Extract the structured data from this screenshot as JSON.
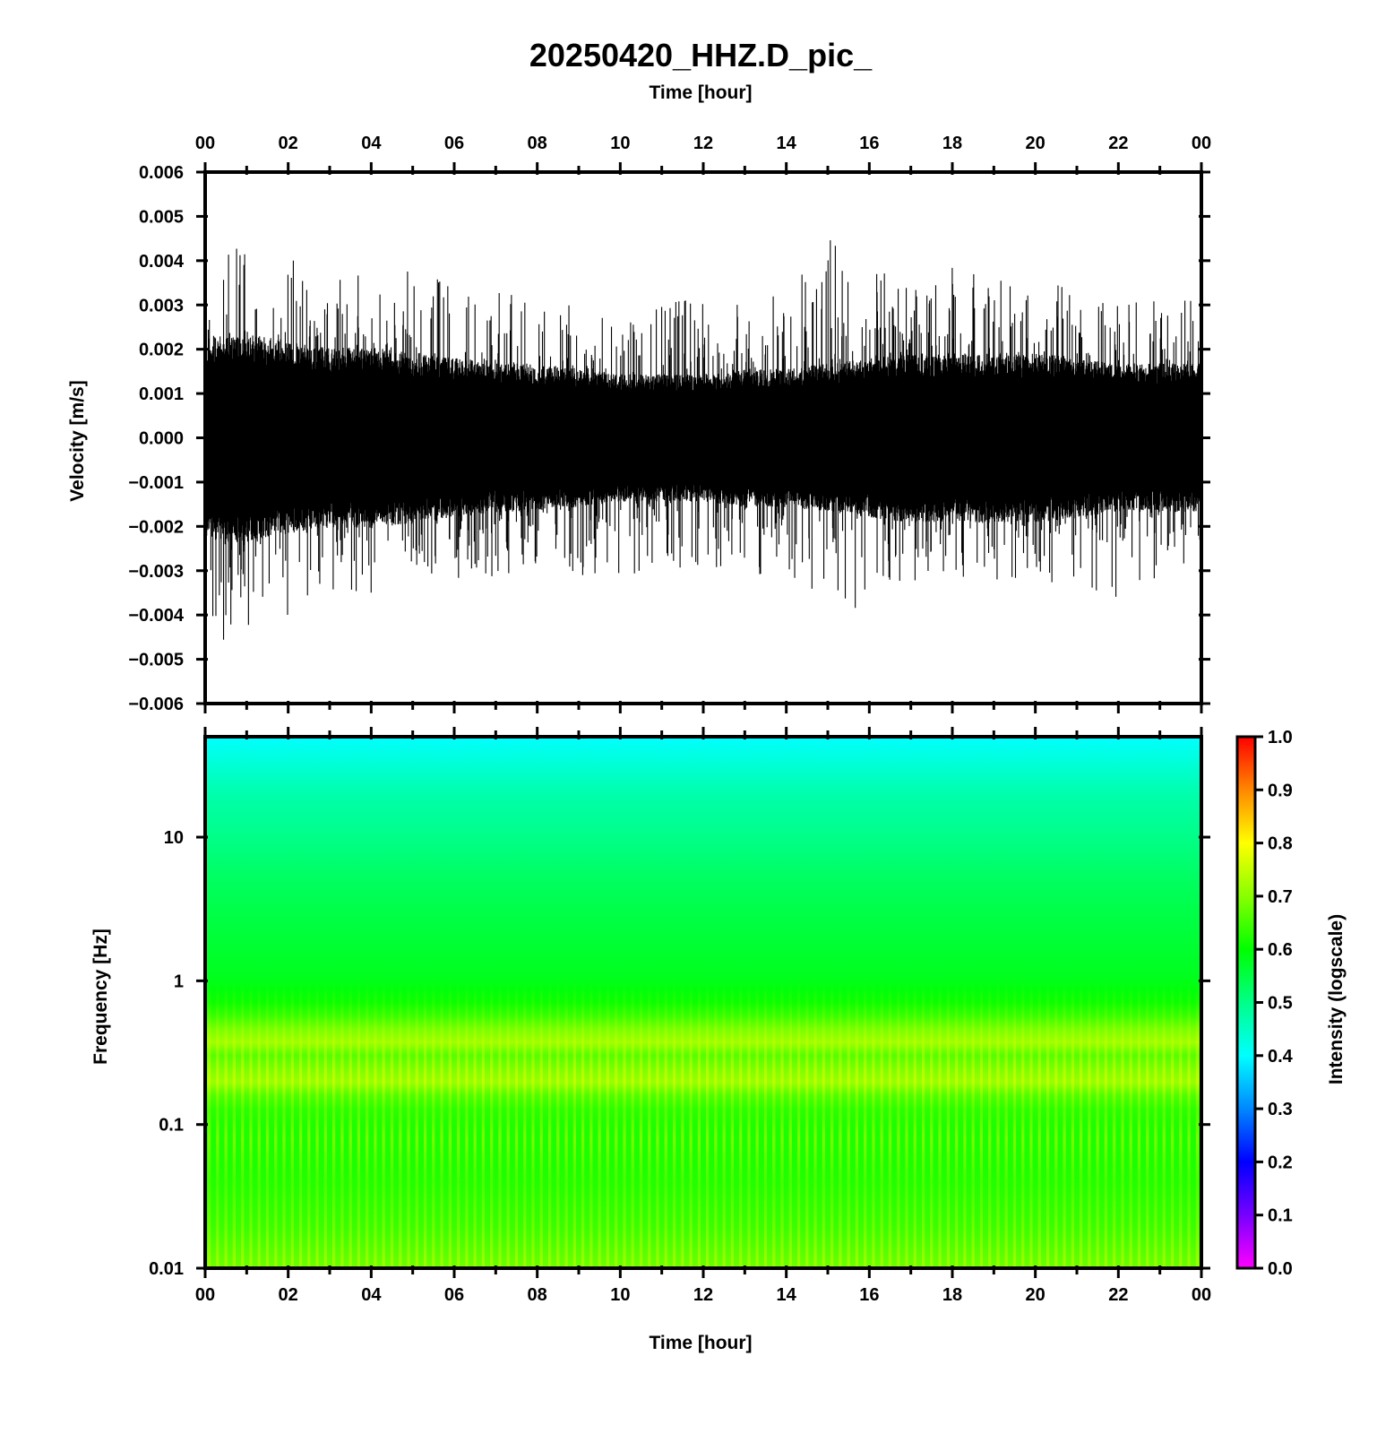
{
  "figure": {
    "title": "20250420_HHZ.D_pic_"
  },
  "chart_data": [
    {
      "type": "line",
      "panel": "waveform",
      "xlabel": "Time [hour]",
      "ylabel": "Velocity [m/s]",
      "xlim": [
        0,
        24
      ],
      "ylim": [
        -0.006,
        0.006
      ],
      "x_tick_labels": [
        "00",
        "02",
        "04",
        "06",
        "08",
        "10",
        "12",
        "14",
        "16",
        "18",
        "20",
        "22",
        "00"
      ],
      "y_tick_labels": [
        "0.006",
        "0.005",
        "0.004",
        "0.003",
        "0.002",
        "0.001",
        "0.000",
        "−0.001",
        "−0.002",
        "−0.003",
        "−0.004",
        "−0.005",
        "−0.006"
      ],
      "line_color": "#000000",
      "envelope_hourly": {
        "hours": [
          0,
          1,
          2,
          3,
          4,
          5,
          6,
          7,
          8,
          9,
          10,
          11,
          12,
          13,
          14,
          15,
          16,
          17,
          18,
          19,
          20,
          21,
          22,
          23,
          24
        ],
        "dense_amplitude": [
          0.0019,
          0.002,
          0.0018,
          0.0017,
          0.0017,
          0.0016,
          0.0015,
          0.0014,
          0.0014,
          0.0013,
          0.0012,
          0.0012,
          0.0012,
          0.0013,
          0.0013,
          0.0014,
          0.0015,
          0.0016,
          0.0016,
          0.0016,
          0.0016,
          0.0015,
          0.0014,
          0.0014,
          0.0014
        ],
        "max_positive": [
          0.0036,
          0.0048,
          0.0043,
          0.0036,
          0.0037,
          0.0039,
          0.0035,
          0.0034,
          0.003,
          0.003,
          0.0026,
          0.0032,
          0.0034,
          0.0032,
          0.0034,
          0.0045,
          0.0039,
          0.0036,
          0.0039,
          0.0036,
          0.0035,
          0.0034,
          0.0033,
          0.0031,
          0.0031
        ],
        "max_negative": [
          -0.0043,
          -0.005,
          -0.004,
          -0.0038,
          -0.0035,
          -0.0033,
          -0.0032,
          -0.0032,
          -0.003,
          -0.0031,
          -0.0031,
          -0.003,
          -0.0029,
          -0.0031,
          -0.0034,
          -0.0043,
          -0.0037,
          -0.0033,
          -0.0034,
          -0.0032,
          -0.0032,
          -0.0034,
          -0.0037,
          -0.0032,
          -0.0032
        ]
      },
      "grid": false
    },
    {
      "type": "heatmap",
      "panel": "spectrogram",
      "xlabel": "Time [hour]",
      "ylabel": "Frequency [Hz]",
      "xlim": [
        0,
        24
      ],
      "ylim": [
        0.01,
        50
      ],
      "yscale": "log",
      "x_tick_labels": [
        "00",
        "02",
        "04",
        "06",
        "08",
        "10",
        "12",
        "14",
        "16",
        "18",
        "20",
        "22",
        "00"
      ],
      "y_tick_labels": [
        "10",
        "1",
        "0.1",
        "0.01"
      ],
      "frequency_profile": {
        "frequency_hz": [
          50,
          30,
          20,
          10,
          5,
          2,
          1,
          0.7,
          0.5,
          0.4,
          0.3,
          0.2,
          0.15,
          0.1,
          0.05,
          0.02,
          0.01
        ],
        "intensity": [
          0.4,
          0.44,
          0.47,
          0.5,
          0.53,
          0.56,
          0.58,
          0.61,
          0.66,
          0.74,
          0.66,
          0.72,
          0.64,
          0.62,
          0.62,
          0.64,
          0.68
        ]
      },
      "vertical_banding": true,
      "colorbar": {
        "label": "Intensity (logscale)",
        "range": [
          0,
          1
        ],
        "tick_labels": [
          "1.0",
          "0.9",
          "0.8",
          "0.7",
          "0.6",
          "0.5",
          "0.4",
          "0.3",
          "0.2",
          "0.1",
          "0.0"
        ],
        "colors": [
          "#ff00ff",
          "#7700ff",
          "#0000ff",
          "#0088ff",
          "#00ffff",
          "#00ff88",
          "#00ff00",
          "#88ff00",
          "#ffff00",
          "#ff8800",
          "#ff0000"
        ]
      }
    }
  ]
}
